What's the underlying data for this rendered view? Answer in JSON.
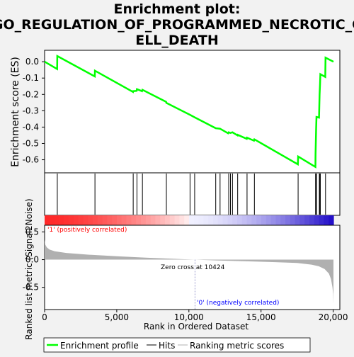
{
  "title_line1": "Enrichment plot:",
  "title_line2": "GO_REGULATION_OF_PROGRAMMED_NECROTIC_C",
  "title_line3": "ELL_DEATH",
  "colors": {
    "es_line": "#00ff00",
    "hits": "#000000",
    "metric": "#b0b0b0",
    "pos_label": "#ff0000",
    "neg_label": "#0000ff"
  },
  "chart_data": {
    "type": "line",
    "top_panel": {
      "ylabel": "Enrichment score (ES)",
      "ylim": [
        -0.68,
        0.07
      ],
      "yticks": [
        0.0,
        -0.1,
        -0.2,
        -0.3,
        -0.4,
        -0.5,
        -0.6
      ],
      "ytick_labels": [
        "0.0",
        "-0.1",
        "-0.2",
        "-0.3",
        "-0.4",
        "-0.5",
        "-0.6"
      ],
      "es_points": [
        [
          0,
          0.0
        ],
        [
          870,
          -0.045
        ],
        [
          880,
          0.035
        ],
        [
          3480,
          -0.09
        ],
        [
          3490,
          -0.055
        ],
        [
          6130,
          -0.185
        ],
        [
          6140,
          -0.18
        ],
        [
          6380,
          -0.178
        ],
        [
          6400,
          -0.168
        ],
        [
          6750,
          -0.18
        ],
        [
          6780,
          -0.172
        ],
        [
          8420,
          -0.245
        ],
        [
          8440,
          -0.252
        ],
        [
          10080,
          -0.325
        ],
        [
          10400,
          -0.34
        ],
        [
          11860,
          -0.407
        ],
        [
          12160,
          -0.41
        ],
        [
          12720,
          -0.438
        ],
        [
          12760,
          -0.432
        ],
        [
          12880,
          -0.436
        ],
        [
          13020,
          -0.432
        ],
        [
          13370,
          -0.451
        ],
        [
          13380,
          -0.447
        ],
        [
          14010,
          -0.472
        ],
        [
          14030,
          -0.465
        ],
        [
          14510,
          -0.483
        ],
        [
          14540,
          -0.475
        ],
        [
          17550,
          -0.628
        ],
        [
          17570,
          -0.58
        ],
        [
          18770,
          -0.644
        ],
        [
          18780,
          -0.565
        ],
        [
          18800,
          -0.488
        ],
        [
          18820,
          -0.41
        ],
        [
          18840,
          -0.338
        ],
        [
          19020,
          -0.342
        ],
        [
          19040,
          -0.27
        ],
        [
          19060,
          -0.2
        ],
        [
          19090,
          -0.14
        ],
        [
          19110,
          -0.076
        ],
        [
          19450,
          -0.093
        ],
        [
          19470,
          0.025
        ],
        [
          20020,
          0.0
        ]
      ]
    },
    "hits_panel": {
      "hit_ranks": [
        880,
        3490,
        6140,
        6400,
        6780,
        8440,
        10080,
        10400,
        11860,
        12160,
        12760,
        12880,
        13020,
        13380,
        14030,
        14540,
        17570,
        18780,
        18800,
        18820,
        18840,
        19040,
        19060,
        19090,
        19110,
        19470
      ]
    },
    "metric_panel": {
      "ylabel": "Ranked list metric (Signal2Noise)",
      "ylim": [
        -0.9,
        0.62
      ],
      "yticks": [
        0.5,
        0.0,
        -0.5
      ],
      "ytick_labels": [
        "0.5",
        "0.0",
        "-0.5"
      ],
      "pos_label": "'1' (positively correlated)",
      "neg_label": "'0' (negatively correlated)",
      "zero_cross_label": "Zero cross at 10424",
      "zero_cross": 10424,
      "metric_points": [
        [
          0,
          0.36
        ],
        [
          50,
          0.27
        ],
        [
          150,
          0.22
        ],
        [
          350,
          0.18
        ],
        [
          700,
          0.15
        ],
        [
          1500,
          0.12
        ],
        [
          3000,
          0.09
        ],
        [
          5000,
          0.06
        ],
        [
          7000,
          0.035
        ],
        [
          9000,
          0.015
        ],
        [
          10424,
          0.0
        ],
        [
          12000,
          -0.015
        ],
        [
          14000,
          -0.03
        ],
        [
          16000,
          -0.045
        ],
        [
          17500,
          -0.06
        ],
        [
          18500,
          -0.09
        ],
        [
          19000,
          -0.12
        ],
        [
          19400,
          -0.17
        ],
        [
          19700,
          -0.25
        ],
        [
          19850,
          -0.35
        ],
        [
          19950,
          -0.5
        ],
        [
          20000,
          -0.62
        ],
        [
          20020,
          -0.8
        ]
      ]
    },
    "xaxis": {
      "xlabel": "Rank in Ordered Dataset",
      "xlim": [
        0,
        20020
      ],
      "xticks": [
        0,
        5000,
        10000,
        15000,
        20000
      ],
      "xtick_labels": [
        "0",
        "5,000",
        "10,000",
        "15,000",
        "20,000"
      ]
    },
    "legend": {
      "position": "bottom",
      "entries": [
        "Enrichment profile",
        "Hits",
        "Ranking metric scores"
      ]
    }
  }
}
